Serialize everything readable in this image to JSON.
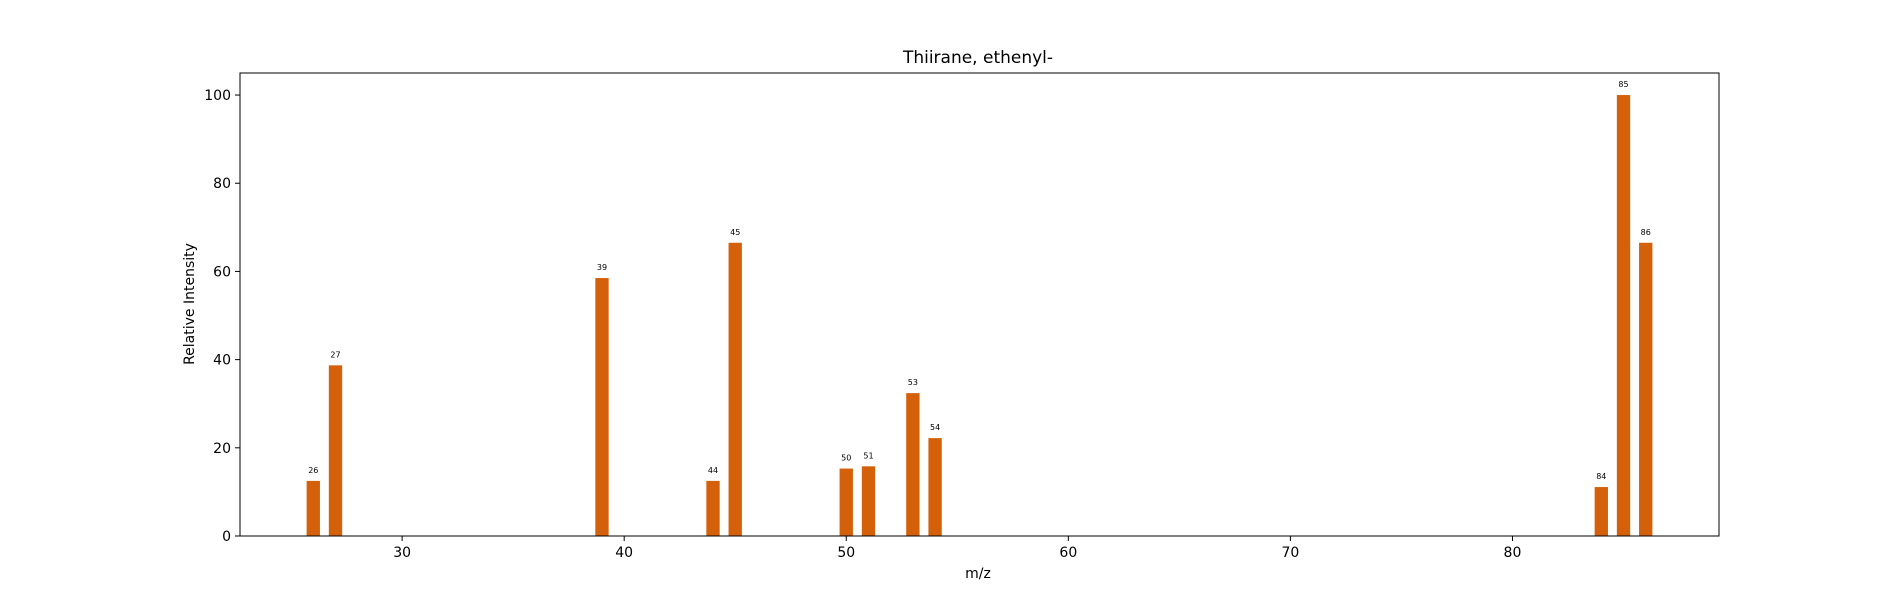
{
  "chart_data": {
    "type": "bar",
    "title": "Thiirane, ethenyl-",
    "xlabel": "m/z",
    "ylabel": "Relative Intensity",
    "xlim": [
      22.7,
      89.3
    ],
    "ylim": [
      0,
      105
    ],
    "xticks": [
      30,
      40,
      50,
      60,
      70,
      80
    ],
    "yticks": [
      0,
      20,
      40,
      60,
      80,
      100
    ],
    "grid": false,
    "bar_color": "#d4600a",
    "x": [
      26,
      27,
      39,
      44,
      45,
      50,
      51,
      53,
      54,
      84,
      85,
      86
    ],
    "values": [
      12.5,
      38.7,
      58.5,
      12.5,
      66.5,
      15.3,
      15.8,
      32.4,
      22.2,
      11.1,
      100,
      66.5
    ],
    "bar_labels": [
      "26",
      "27",
      "39",
      "44",
      "45",
      "50",
      "51",
      "53",
      "54",
      "84",
      "85",
      "86"
    ]
  }
}
